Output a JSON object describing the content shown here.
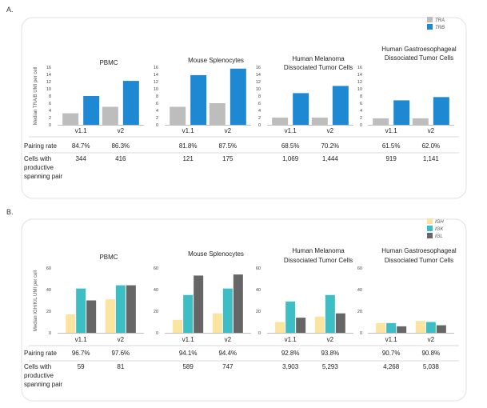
{
  "colors": {
    "tra": "#bdbdbd",
    "trb": "#1e88d2",
    "igh": "#fbe3a0",
    "igk": "#3cbec4",
    "igl": "#666666",
    "panel_border": "#e2e2e2",
    "axis": "#aaaaaa",
    "divider": "#cfcfcf"
  },
  "panels": [
    {
      "label": "A.",
      "ylabel": "Median TRA/B UMI per cell",
      "legend": [
        "TRA",
        "TRB"
      ],
      "row_labels": [
        "Pairing rate",
        "Cells with",
        "productive",
        "spanning pair"
      ],
      "charts": [
        {
          "title": [
            "PBMC"
          ],
          "ymax": 16,
          "ticks": [
            "0",
            "2",
            "4",
            "6",
            "8",
            "10",
            "12",
            "14",
            "16"
          ],
          "categories": [
            "v1.1",
            "v2"
          ],
          "series": [
            [
              3.2,
              5.0
            ],
            [
              8.0,
              12.2
            ]
          ],
          "pairing": [
            "84.7%",
            "86.3%"
          ],
          "cells": [
            "344",
            "416"
          ]
        },
        {
          "title": [
            "Mouse Splenocytes"
          ],
          "ymax": 16,
          "ticks": [
            "0",
            "2",
            "4",
            "6",
            "8",
            "10",
            "12",
            "14",
            "16"
          ],
          "categories": [
            "v1.1",
            "v2"
          ],
          "series": [
            [
              5.0,
              6.0
            ],
            [
              13.8,
              15.6
            ]
          ],
          "pairing": [
            "81.8%",
            "87.5%"
          ],
          "cells": [
            "121",
            "175"
          ]
        },
        {
          "title": [
            "Human Melanoma",
            "Dissociated Tumor Cells"
          ],
          "ymax": 16,
          "ticks": [
            "0",
            "2",
            "4",
            "6",
            "8",
            "10",
            "12",
            "14",
            "16"
          ],
          "categories": [
            "v1.1",
            "v2"
          ],
          "series": [
            [
              2.0,
              2.0
            ],
            [
              8.8,
              10.8
            ]
          ],
          "pairing": [
            "68.5%",
            "70.2%"
          ],
          "cells": [
            "1,069",
            "1,444"
          ]
        },
        {
          "title": [
            "Human Gastroesophageal",
            "Dissociated Tumor Cells"
          ],
          "ymax": 16,
          "ticks": [
            "0",
            "2",
            "4",
            "6",
            "8",
            "10",
            "12",
            "14",
            "16"
          ],
          "categories": [
            "v1.1",
            "v2"
          ],
          "series": [
            [
              1.8,
              1.8
            ],
            [
              6.8,
              7.7
            ]
          ],
          "pairing": [
            "61.5%",
            "62.0%"
          ],
          "cells": [
            "919",
            "1,141"
          ]
        }
      ]
    },
    {
      "label": "B.",
      "ylabel": "Median IGH/K/L UMI per cell",
      "legend": [
        "IGH",
        "IGK",
        "IGL"
      ],
      "row_labels": [
        "Pairing rate",
        "Cells with",
        "productive",
        "spanning pair"
      ],
      "charts": [
        {
          "title": [
            "PBMC"
          ],
          "ymax": 60,
          "ticks": [
            "0",
            "20",
            "40",
            "60"
          ],
          "categories": [
            "v1.1",
            "v2"
          ],
          "series": [
            [
              17,
              31
            ],
            [
              41,
              44
            ],
            [
              30,
              44
            ]
          ],
          "pairing": [
            "96.7%",
            "97.6%"
          ],
          "cells": [
            "59",
            "81"
          ]
        },
        {
          "title": [
            "Mouse Splenocytes"
          ],
          "ymax": 60,
          "ticks": [
            "0",
            "20",
            "40",
            "60"
          ],
          "categories": [
            "v1.1",
            "v2"
          ],
          "series": [
            [
              12,
              18
            ],
            [
              35,
              41
            ],
            [
              53,
              54
            ]
          ],
          "pairing": [
            "94.1%",
            "94.4%"
          ],
          "cells": [
            "589",
            "747"
          ]
        },
        {
          "title": [
            "Human Melanoma",
            "Dissociated Tumor Cells"
          ],
          "ymax": 60,
          "ticks": [
            "0",
            "20",
            "40",
            "60"
          ],
          "categories": [
            "v1.1",
            "v2"
          ],
          "series": [
            [
              10,
              15
            ],
            [
              29,
              35
            ],
            [
              14,
              18
            ]
          ],
          "pairing": [
            "92.8%",
            "93.8%"
          ],
          "cells": [
            "3,903",
            "5,293"
          ]
        },
        {
          "title": [
            "Human Gastroesophageal",
            "Dissociated Tumor Cells"
          ],
          "ymax": 60,
          "ticks": [
            "0",
            "20",
            "40",
            "60"
          ],
          "categories": [
            "v1.1",
            "v2"
          ],
          "series": [
            [
              9,
              11
            ],
            [
              9,
              10
            ],
            [
              6,
              7
            ]
          ],
          "pairing": [
            "90.7%",
            "90.8%"
          ],
          "cells": [
            "4,268",
            "5,038"
          ]
        }
      ]
    }
  ],
  "chart_data": [
    {
      "type": "bar",
      "title": "A. Median TRA/B UMI per cell",
      "ylabel": "Median TRA/B UMI per cell",
      "ylim": [
        0,
        16
      ],
      "legend": [
        "TRA",
        "TRB"
      ],
      "groups": [
        {
          "name": "PBMC",
          "categories": [
            "v1.1",
            "v2"
          ],
          "series": [
            {
              "name": "TRA",
              "values": [
                3.2,
                5.0
              ]
            },
            {
              "name": "TRB",
              "values": [
                8.0,
                12.2
              ]
            }
          ]
        },
        {
          "name": "Mouse Splenocytes",
          "categories": [
            "v1.1",
            "v2"
          ],
          "series": [
            {
              "name": "TRA",
              "values": [
                5.0,
                6.0
              ]
            },
            {
              "name": "TRB",
              "values": [
                13.8,
                15.6
              ]
            }
          ]
        },
        {
          "name": "Human Melanoma Dissociated Tumor Cells",
          "categories": [
            "v1.1",
            "v2"
          ],
          "series": [
            {
              "name": "TRA",
              "values": [
                2.0,
                2.0
              ]
            },
            {
              "name": "TRB",
              "values": [
                8.8,
                10.8
              ]
            }
          ]
        },
        {
          "name": "Human Gastroesophageal Dissociated Tumor Cells",
          "categories": [
            "v1.1",
            "v2"
          ],
          "series": [
            {
              "name": "TRA",
              "values": [
                1.8,
                1.8
              ]
            },
            {
              "name": "TRB",
              "values": [
                6.8,
                7.7
              ]
            }
          ]
        }
      ]
    },
    {
      "type": "bar",
      "title": "B. Median IGH/K/L UMI per cell",
      "ylabel": "Median IGH/K/L UMI per cell",
      "ylim": [
        0,
        60
      ],
      "legend": [
        "IGH",
        "IGK",
        "IGL"
      ],
      "groups": [
        {
          "name": "PBMC",
          "categories": [
            "v1.1",
            "v2"
          ],
          "series": [
            {
              "name": "IGH",
              "values": [
                17,
                31
              ]
            },
            {
              "name": "IGK",
              "values": [
                41,
                44
              ]
            },
            {
              "name": "IGL",
              "values": [
                30,
                44
              ]
            }
          ]
        },
        {
          "name": "Mouse Splenocytes",
          "categories": [
            "v1.1",
            "v2"
          ],
          "series": [
            {
              "name": "IGH",
              "values": [
                12,
                18
              ]
            },
            {
              "name": "IGK",
              "values": [
                35,
                41
              ]
            },
            {
              "name": "IGL",
              "values": [
                53,
                54
              ]
            }
          ]
        },
        {
          "name": "Human Melanoma Dissociated Tumor Cells",
          "categories": [
            "v1.1",
            "v2"
          ],
          "series": [
            {
              "name": "IGH",
              "values": [
                10,
                15
              ]
            },
            {
              "name": "IGK",
              "values": [
                29,
                35
              ]
            },
            {
              "name": "IGL",
              "values": [
                14,
                18
              ]
            }
          ]
        },
        {
          "name": "Human Gastroesophageal Dissociated Tumor Cells",
          "categories": [
            "v1.1",
            "v2"
          ],
          "series": [
            {
              "name": "IGH",
              "values": [
                9,
                11
              ]
            },
            {
              "name": "IGK",
              "values": [
                9,
                10
              ]
            },
            {
              "name": "IGL",
              "values": [
                6,
                7
              ]
            }
          ]
        }
      ]
    }
  ]
}
